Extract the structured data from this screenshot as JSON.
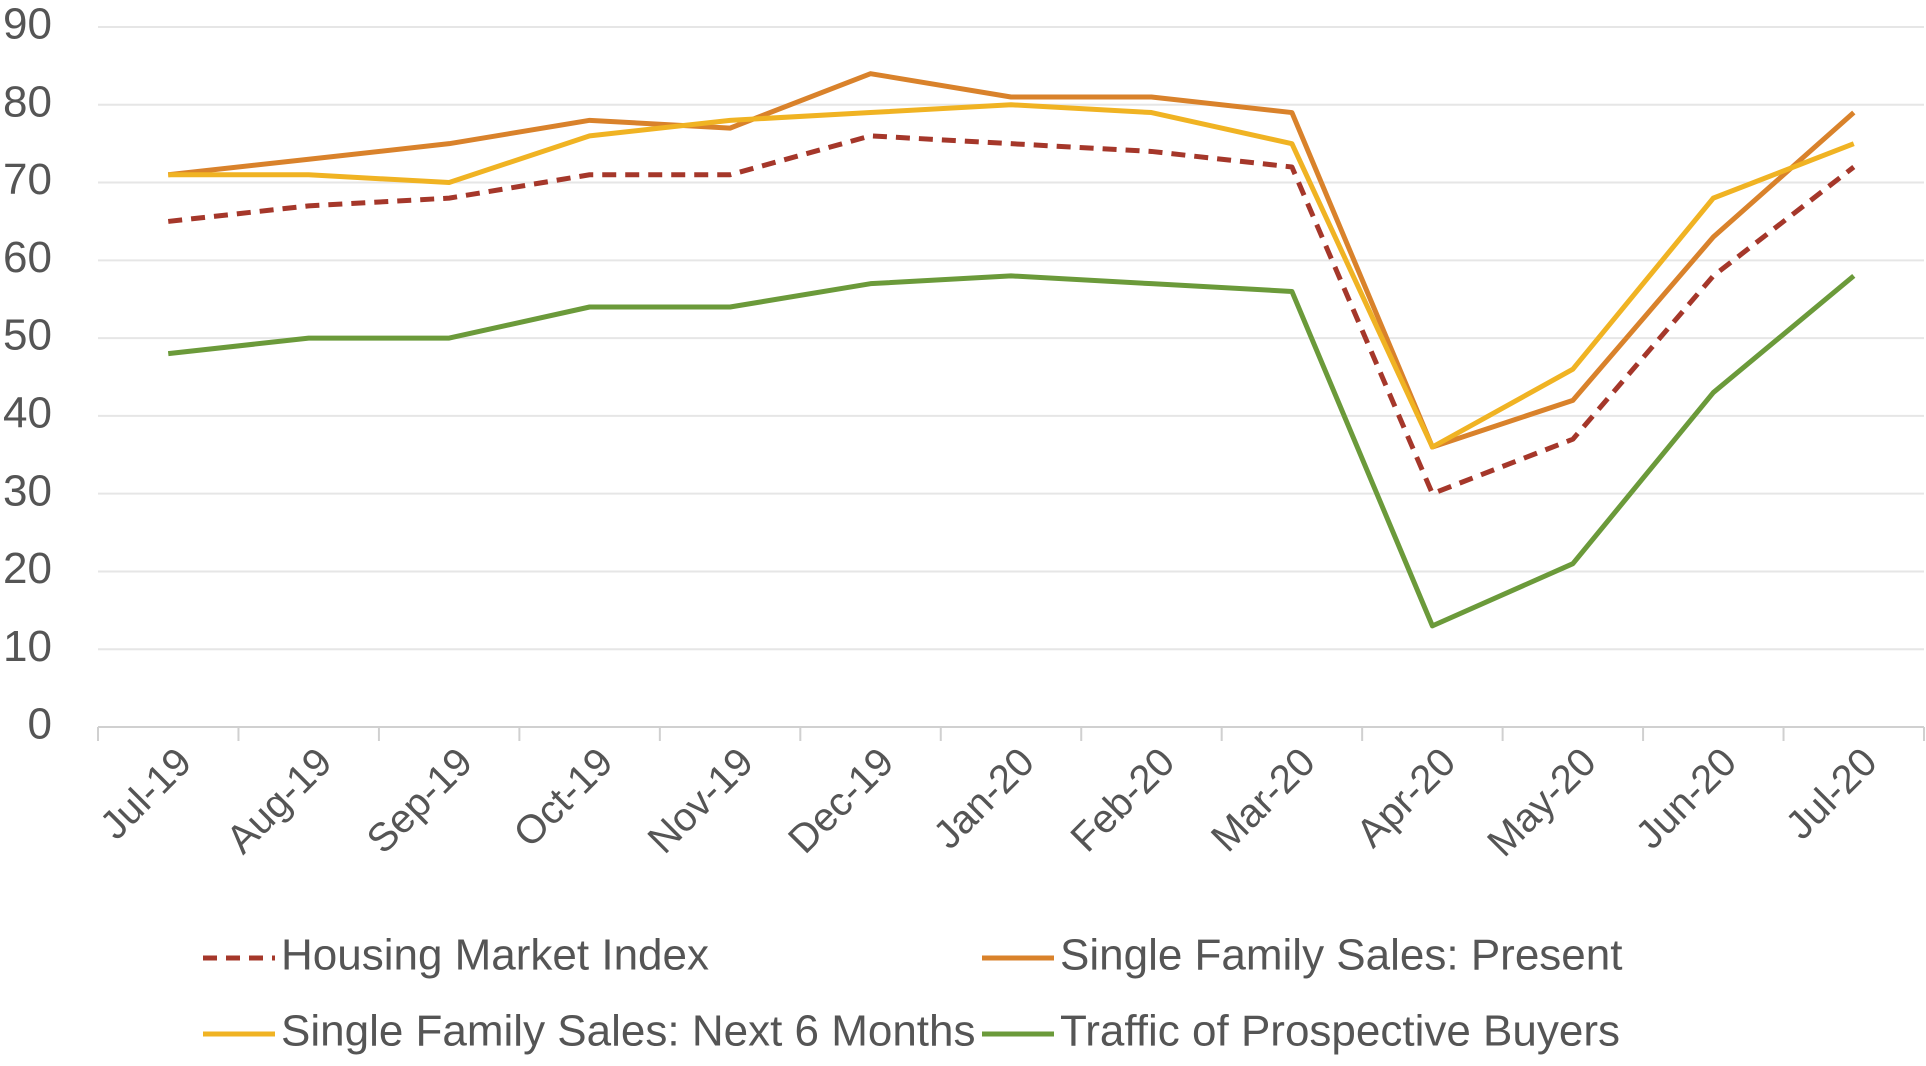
{
  "chart_data": {
    "type": "line",
    "categories": [
      "Jul-19",
      "Aug-19",
      "Sep-19",
      "Oct-19",
      "Nov-19",
      "Dec-19",
      "Jan-20",
      "Feb-20",
      "Mar-20",
      "Apr-20",
      "May-20",
      "Jun-20",
      "Jul-20"
    ],
    "series": [
      {
        "name": "Housing Market Index",
        "color": "#a5372a",
        "dashed": true,
        "values": [
          65,
          67,
          68,
          71,
          71,
          76,
          75,
          74,
          72,
          30,
          37,
          58,
          72
        ]
      },
      {
        "name": "Single Family Sales: Present",
        "color": "#d9822b",
        "values": [
          71,
          73,
          75,
          78,
          77,
          84,
          81,
          81,
          79,
          36,
          42,
          63,
          79
        ]
      },
      {
        "name": "Single Family Sales: Next 6 Months",
        "color": "#f0b323",
        "values": [
          71,
          71,
          70,
          76,
          78,
          79,
          80,
          79,
          75,
          36,
          46,
          68,
          75
        ]
      },
      {
        "name": "Traffic of Prospective Buyers",
        "color": "#6b9a3a",
        "values": [
          48,
          50,
          50,
          54,
          54,
          57,
          58,
          57,
          56,
          13,
          21,
          43,
          58
        ]
      }
    ],
    "ylim": [
      0,
      90
    ],
    "yticks": [
      0,
      10,
      20,
      30,
      40,
      50,
      60,
      70,
      80,
      90
    ],
    "grid": true,
    "legend": "bottom"
  }
}
